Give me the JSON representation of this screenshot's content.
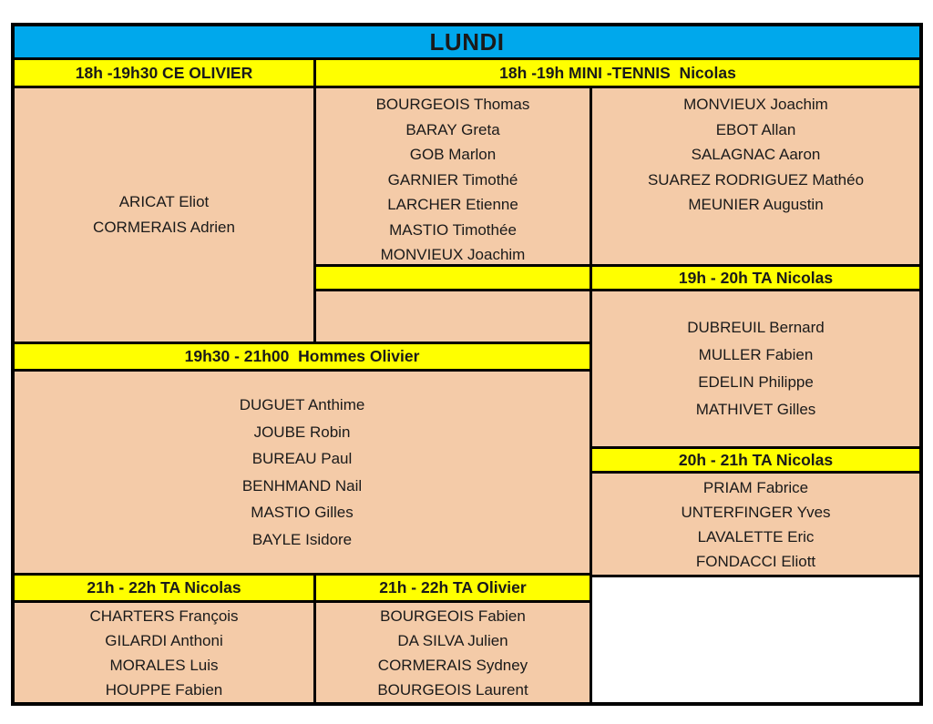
{
  "title": "LUNDI",
  "colors": {
    "day_header_bg": "#00A8EC",
    "slot_header_bg": "#FFFF00",
    "cell_bg": "#F4CBA8",
    "border": "#000000",
    "empty_cell_bg": "#FFFFFF"
  },
  "slots": {
    "ce_olivier": {
      "label": "18h -19h30 CE OLIVIER",
      "players": [
        "ARICAT Eliot",
        "CORMERAIS Adrien"
      ]
    },
    "mini_tennis": {
      "label": "18h -19h MINI -TENNIS  Nicolas",
      "group1": [
        "BOURGEOIS Thomas",
        "BARAY Greta",
        "GOB Marlon",
        "GARNIER Timothé",
        "LARCHER Etienne",
        "MASTIO Timothée",
        "MONVIEUX Joachim"
      ],
      "group2": [
        "MONVIEUX Joachim",
        "EBOT Allan",
        "SALAGNAC Aaron",
        "SUAREZ RODRIGUEZ Mathéo",
        "MEUNIER Augustin"
      ]
    },
    "ta_19_20": {
      "label": "19h - 20h TA Nicolas",
      "players": [
        "DUBREUIL Bernard",
        "MULLER Fabien",
        "EDELIN Philippe",
        "MATHIVET Gilles"
      ]
    },
    "hommes": {
      "label": "19h30 - 21h00  Hommes Olivier",
      "players": [
        "DUGUET Anthime",
        "JOUBE Robin",
        "BUREAU Paul",
        "BENHMAND Nail",
        "MASTIO Gilles",
        "BAYLE Isidore"
      ]
    },
    "ta_20_21": {
      "label": "20h - 21h TA Nicolas",
      "players": [
        "PRIAM Fabrice",
        "UNTERFINGER Yves",
        "LAVALETTE Eric",
        "FONDACCI Eliott"
      ]
    },
    "ta_21_22_nicolas": {
      "label": "21h - 22h TA Nicolas",
      "players": [
        "CHARTERS François",
        "GILARDI Anthoni",
        "MORALES Luis",
        "HOUPPE Fabien"
      ]
    },
    "ta_21_22_olivier": {
      "label": "21h - 22h TA Olivier",
      "players": [
        "BOURGEOIS Fabien",
        "DA SILVA Julien",
        "CORMERAIS Sydney",
        "BOURGEOIS Laurent"
      ]
    }
  }
}
